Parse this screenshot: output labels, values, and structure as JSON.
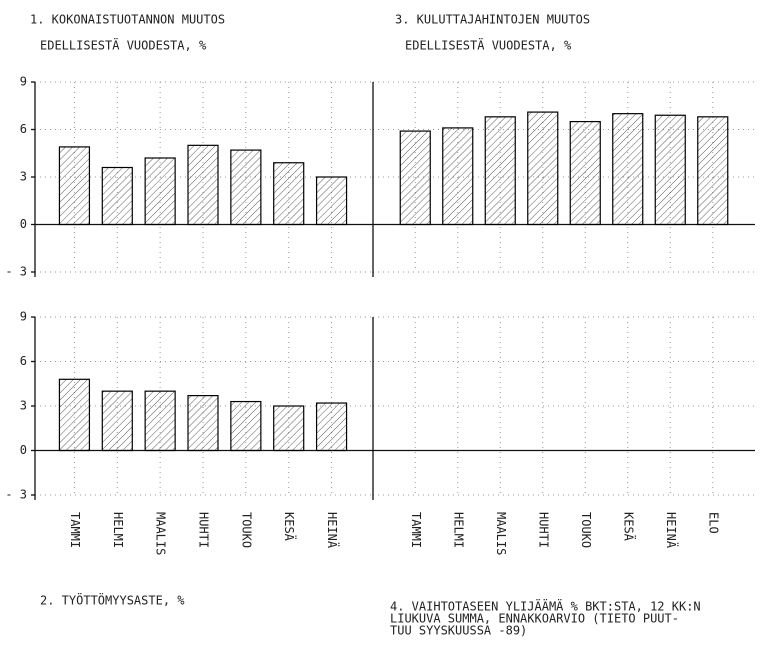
{
  "chart_data": [
    {
      "type": "bar",
      "title": "1. KOKONAISTUOTANNON MUUTOS",
      "subtitle": "EDELLISESTÄ VUODESTA, %",
      "values": [
        4.9,
        3.6,
        4.2,
        5.0,
        4.7,
        3.9,
        3.0
      ],
      "ylim": [
        -3,
        9
      ],
      "yticks": [
        9,
        6,
        3,
        0,
        {
          "value": -3,
          "label": "- 3"
        }
      ],
      "grid": true,
      "color": "#000000"
    },
    {
      "type": "bar",
      "title": "2. TYÖTTÖMYYSASTE, %",
      "categories": [
        "TAMMI",
        "HELMI",
        "MAALIS",
        "HUHTI",
        "TOUKO",
        "KESÄ",
        "HEINÄ"
      ],
      "values": [
        4.8,
        4.0,
        4.0,
        3.7,
        3.3,
        3.0,
        3.2
      ],
      "ylim": [
        -3,
        9
      ],
      "yticks": [
        9,
        6,
        3,
        0,
        {
          "value": -3,
          "label": "- 3"
        }
      ],
      "grid": true,
      "color": "#000000"
    },
    {
      "type": "bar",
      "title": "3. KULUTTAJAHINTOJEN MUUTOS",
      "subtitle": "EDELLISESTÄ VUODESTA, %",
      "values": [
        5.9,
        6.1,
        6.8,
        7.1,
        6.5,
        7.0,
        6.9,
        6.8
      ],
      "ylim": [
        -3,
        9
      ],
      "yticks": [
        9,
        6,
        3,
        0,
        -3
      ],
      "grid": true,
      "color": "#000000"
    },
    {
      "type": "bar",
      "title": [
        "4. VAIHTOTASEEN YLIJÄÄMÄ % BKT:STA, 12 KK:N",
        "LIUKUVA SUMMA, ENNAKKOARVIO (TIETO PUUT-",
        "TUU SYYSKUUSSA -89)"
      ],
      "categories": [
        "TAMMI",
        "HELMI",
        "MAALIS",
        "HUHTI",
        "TOUKO",
        "KESÄ",
        "HEINÄ",
        "ELO"
      ],
      "ylim": [
        -3,
        9
      ],
      "yticks": [
        9,
        6,
        3,
        0,
        -3
      ],
      "grid": true,
      "color": "#000000"
    }
  ]
}
